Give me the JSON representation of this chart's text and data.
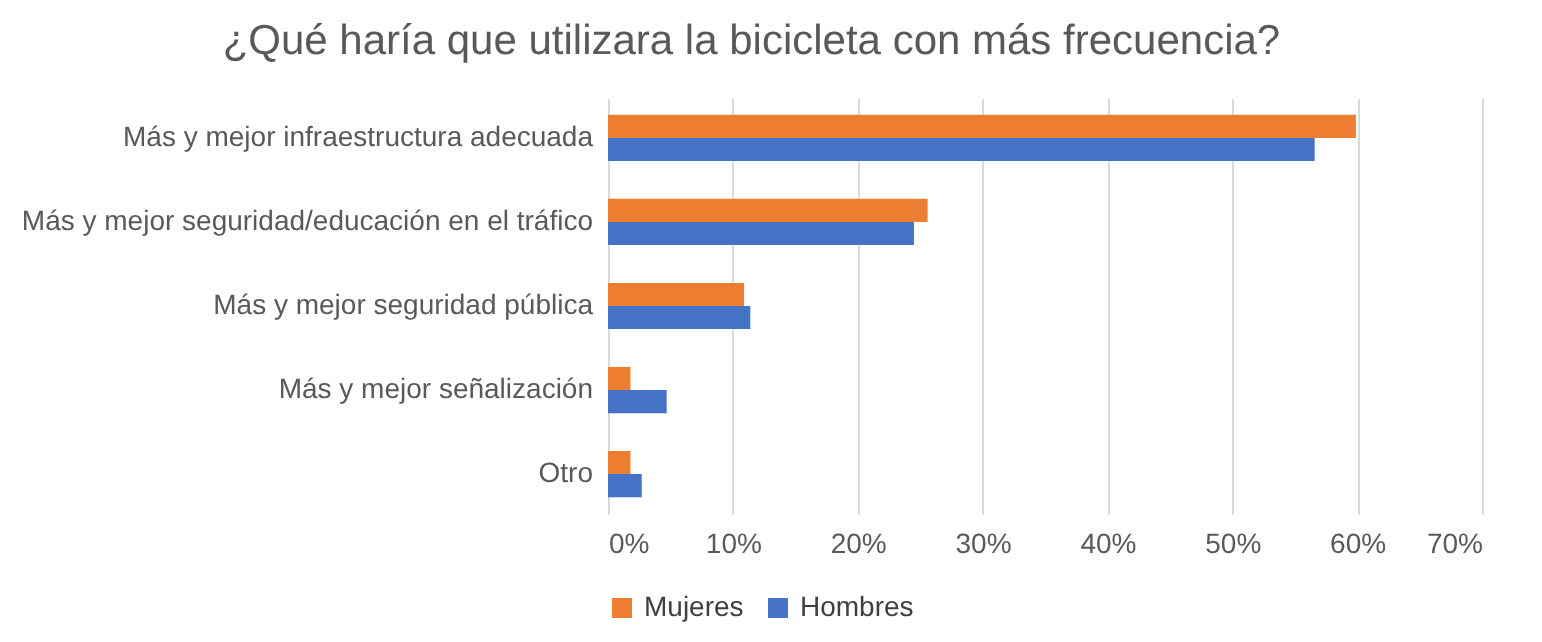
{
  "chart_data": {
    "type": "bar",
    "orientation": "horizontal",
    "title": "¿Qué haría que utilizara la bicicleta con más frecuencia?",
    "categories": [
      "Más y mejor infraestructura adecuada",
      "Más y mejor seguridad/educación en el tráfico",
      "Más y mejor seguridad pública",
      "Más y mejor señalización",
      "Otro"
    ],
    "series": [
      {
        "name": "Mujeres",
        "color": "#ed7d31",
        "values": [
          59.9,
          25.6,
          10.9,
          1.8,
          1.8
        ]
      },
      {
        "name": "Hombres",
        "color": "#4472c4",
        "values": [
          56.6,
          24.5,
          11.4,
          4.7,
          2.7
        ]
      }
    ],
    "xlim": [
      0,
      70
    ],
    "xticks": [
      {
        "value": 0,
        "label": "0%"
      },
      {
        "value": 10,
        "label": "10%"
      },
      {
        "value": 20,
        "label": "20%"
      },
      {
        "value": 30,
        "label": "30%"
      },
      {
        "value": 40,
        "label": "40%"
      },
      {
        "value": 50,
        "label": "50%"
      },
      {
        "value": 60,
        "label": "60%"
      },
      {
        "value": 70,
        "label": "70%"
      }
    ],
    "grid": "x",
    "legend": "bottom"
  }
}
